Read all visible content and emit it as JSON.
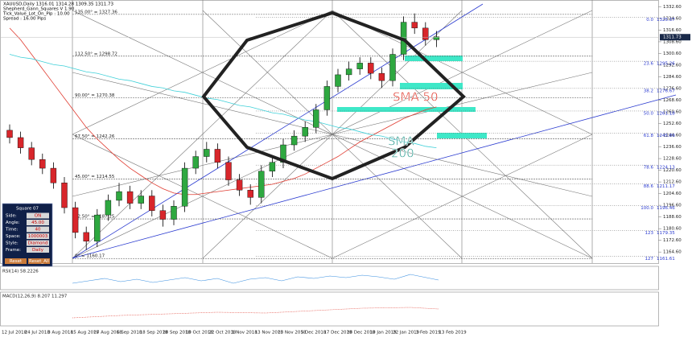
{
  "chart_data": {
    "type": "candlestick",
    "symbol_info": "XAUUSD,Daily  1316.01 1314.28 1309.35 1311.73",
    "indicator_name": "Shepherd_Gann_Squares V 1.90",
    "tick_value": "Tick_Value_Lot_On_Pip : 10.00",
    "spread": "Spread : 16.00  Pips",
    "annotations": {
      "sma50": "SMA 50",
      "sma200_line1": "SMA",
      "sma200_line2": "200"
    },
    "current_price": {
      "value": 1311.73,
      "label": "1311.73"
    },
    "ylim": [
      1157,
      1335
    ],
    "yticks": [
      {
        "value": 1332.6,
        "label": "1332.60"
      },
      {
        "value": 1324.6,
        "label": "1324.60"
      },
      {
        "value": 1316.6,
        "label": "1316.60"
      },
      {
        "value": 1308.6,
        "label": "1308.60"
      },
      {
        "value": 1300.6,
        "label": "1300.60"
      },
      {
        "value": 1292.6,
        "label": "1292.60"
      },
      {
        "value": 1284.6,
        "label": "1284.60"
      },
      {
        "value": 1276.6,
        "label": "1276.60"
      },
      {
        "value": 1268.6,
        "label": "1268.60"
      },
      {
        "value": 1260.6,
        "label": "1260.60"
      },
      {
        "value": 1252.6,
        "label": "1252.60"
      },
      {
        "value": 1244.6,
        "label": "1244.60"
      },
      {
        "value": 1236.6,
        "label": "1236.60"
      },
      {
        "value": 1228.6,
        "label": "1228.60"
      },
      {
        "value": 1220.6,
        "label": "1220.60"
      },
      {
        "value": 1212.6,
        "label": "1212.60"
      },
      {
        "value": 1204.6,
        "label": "1204.60"
      },
      {
        "value": 1196.6,
        "label": "1196.60"
      },
      {
        "value": 1188.6,
        "label": "1188.60"
      },
      {
        "value": 1180.6,
        "label": "1180.60"
      },
      {
        "value": 1172.6,
        "label": "1172.60"
      },
      {
        "value": 1164.6,
        "label": "1164.60"
      }
    ],
    "date_labels": [
      "12 Jul 2018",
      "24 Jul 2018",
      "3 Aug 2018",
      "15 Aug 2018",
      "27 Aug 2018",
      "6 Sep 2018",
      "18 Sep 2018",
      "28 Sep 2018",
      "10 Oct 2018",
      "22 Oct 2018",
      "1 Nov 2018",
      "13 Nov 2018",
      "23 Nov 2018",
      "5 Dec 2018",
      "17 Dec 2018",
      "28 Dec 2018",
      "10 Jan 2019",
      "22 Jan 2019",
      "1 Feb 2019",
      "13 Feb 2019"
    ],
    "open": [
      1248,
      1243,
      1236,
      1228,
      1222,
      1212,
      1195,
      1178,
      1172,
      1190,
      1200,
      1206,
      1198,
      1203,
      1193,
      1187,
      1196,
      1222,
      1230,
      1235,
      1226,
      1214,
      1207,
      1202,
      1220,
      1226,
      1238,
      1244,
      1250,
      1262,
      1278,
      1286,
      1290,
      1294,
      1287,
      1282,
      1300,
      1322,
      1318,
      1310
    ],
    "high": [
      1252,
      1247,
      1240,
      1232,
      1226,
      1216,
      1199,
      1182,
      1194,
      1204,
      1212,
      1210,
      1207,
      1207,
      1197,
      1200,
      1226,
      1234,
      1240,
      1239,
      1230,
      1218,
      1211,
      1224,
      1230,
      1242,
      1248,
      1254,
      1266,
      1282,
      1290,
      1295,
      1298,
      1298,
      1291,
      1304,
      1326,
      1328,
      1322,
      1316
    ],
    "low": [
      1239,
      1232,
      1224,
      1218,
      1208,
      1191,
      1174,
      1166,
      1168,
      1186,
      1196,
      1194,
      1194,
      1189,
      1182,
      1183,
      1192,
      1218,
      1226,
      1222,
      1210,
      1203,
      1197,
      1198,
      1216,
      1222,
      1234,
      1240,
      1246,
      1258,
      1274,
      1282,
      1286,
      1283,
      1277,
      1278,
      1296,
      1314,
      1306,
      1305
    ],
    "close": [
      1243,
      1236,
      1228,
      1222,
      1212,
      1195,
      1178,
      1172,
      1190,
      1200,
      1206,
      1198,
      1203,
      1193,
      1187,
      1196,
      1222,
      1230,
      1235,
      1226,
      1214,
      1207,
      1202,
      1220,
      1226,
      1238,
      1244,
      1250,
      1262,
      1278,
      1286,
      1290,
      1294,
      1287,
      1282,
      1300,
      1322,
      1318,
      1310,
      1312
    ],
    "series": [
      {
        "name": "SMA 50",
        "color": "#e03c31",
        "values": [
          1318,
          1310,
          1300,
          1290,
          1280,
          1270,
          1260,
          1250,
          1242,
          1235,
          1228,
          1222,
          1217,
          1212,
          1208,
          1205,
          1204,
          1204,
          1205,
          1206,
          1207,
          1208,
          1209,
          1210,
          1211,
          1213,
          1215,
          1218,
          1222,
          1226,
          1230,
          1235,
          1240,
          1244,
          1248,
          1252,
          1256,
          1259,
          1262,
          1264
        ]
      },
      {
        "name": "SMA 200",
        "color": "#3fd0d8",
        "values": [
          1300,
          1298,
          1297,
          1295,
          1293,
          1292,
          1290,
          1288,
          1287,
          1285,
          1283,
          1282,
          1280,
          1278,
          1277,
          1275,
          1274,
          1272,
          1270,
          1269,
          1267,
          1265,
          1264,
          1262,
          1260,
          1259,
          1257,
          1255,
          1254,
          1252,
          1250,
          1249,
          1247,
          1245,
          1244,
          1242,
          1240,
          1239,
          1237,
          1236
        ]
      }
    ],
    "gann_levels": [
      {
        "value": 1327.36,
        "label": "135.00° = 1327.36"
      },
      {
        "value": 1298.72,
        "label": "112.50° = 1298.72"
      },
      {
        "value": 1270.38,
        "label": "90.00° = 1270.38"
      },
      {
        "value": 1242.26,
        "label": "67.50° = 1242.26"
      },
      {
        "value": 1214.55,
        "label": "45.00° = 1214.55"
      },
      {
        "value": 1187.25,
        "label": "22.50° = 1187.25"
      },
      {
        "value": 1160.17,
        "label": "0° = 1160.17"
      }
    ],
    "fib_levels": [
      {
        "ratio": "0.0",
        "value": 1325.37
      },
      {
        "ratio": "23.6",
        "value": 1295.26
      },
      {
        "ratio": "38.2",
        "value": 1276.67
      },
      {
        "ratio": "50.0",
        "value": 1261.18
      },
      {
        "ratio": "61.8",
        "value": 1245.89
      },
      {
        "ratio": "78.6",
        "value": 1224.13
      },
      {
        "ratio": "88.6",
        "value": 1211.17
      },
      {
        "ratio": "100.0",
        "value": 1196.46
      },
      {
        "ratio": "123",
        "value": 1179.35
      },
      {
        "ratio": "127",
        "value": 1161.61
      }
    ],
    "rsi_label": "RSI(14) 58.2226",
    "macd_label": "MACD(12,26,9) 8.207 11.297",
    "panel": {
      "title": "Square 07",
      "rows": [
        [
          "Side:",
          "ON"
        ],
        [
          "Angle:",
          "45.00"
        ],
        [
          "Time:",
          "40"
        ],
        [
          "Space:",
          "1000003"
        ],
        [
          "Style:",
          "Diamond"
        ],
        [
          "Frame:",
          "Daily"
        ]
      ],
      "buttons": [
        "Reset",
        "Reset_All"
      ]
    }
  }
}
